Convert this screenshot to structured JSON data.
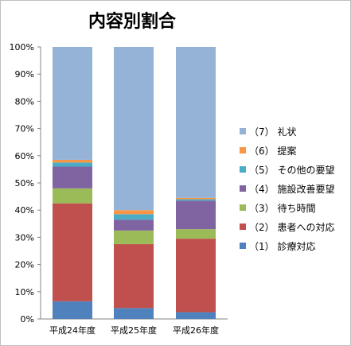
{
  "chart_data": {
    "type": "bar",
    "stacked": true,
    "title": "内容別割合",
    "categories": [
      "平成24年度",
      "平成25年度",
      "平成26年度"
    ],
    "series": [
      {
        "name": "（1） 診療対応",
        "color": "#4f81bd",
        "values": [
          6.5,
          4.0,
          2.5
        ]
      },
      {
        "name": "（2） 患者への対応",
        "color": "#c0504d",
        "values": [
          36.0,
          23.5,
          27.0
        ]
      },
      {
        "name": "（3） 待ち時間",
        "color": "#9bbb59",
        "values": [
          5.5,
          5.0,
          3.5
        ]
      },
      {
        "name": "（4） 施設改善要望",
        "color": "#8064a2",
        "values": [
          8.0,
          4.0,
          10.5
        ]
      },
      {
        "name": "（5） その他の要望",
        "color": "#4bacc6",
        "values": [
          1.5,
          2.0,
          0.5
        ]
      },
      {
        "name": "（6） 提案",
        "color": "#f79646",
        "values": [
          1.0,
          1.5,
          0.5
        ]
      },
      {
        "name": "（7） 礼状",
        "color": "#95b3d7",
        "values": [
          41.5,
          60.0,
          55.5
        ]
      }
    ],
    "yticks": [
      "0%",
      "10%",
      "20%",
      "30%",
      "40%",
      "50%",
      "60%",
      "70%",
      "80%",
      "90%",
      "100%"
    ],
    "ylim": [
      0,
      100
    ],
    "grid": false,
    "legend_position": "right"
  }
}
